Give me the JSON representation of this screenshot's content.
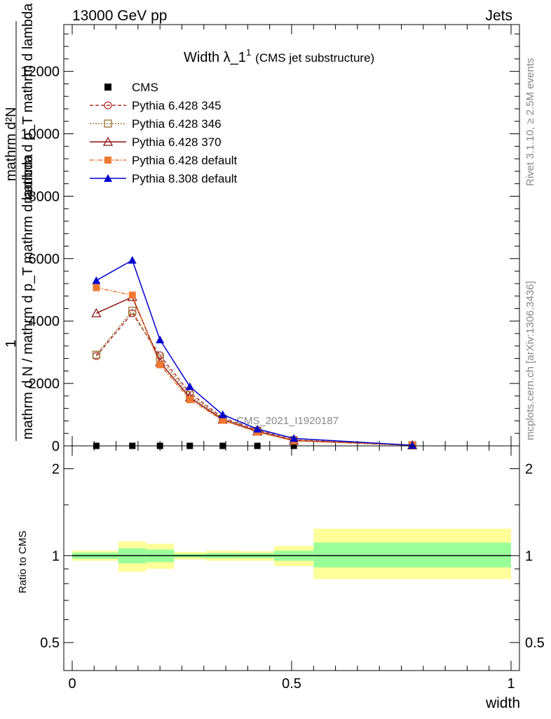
{
  "header": {
    "left": "13000 GeV pp",
    "right": "Jets"
  },
  "chart_data": {
    "type": "line",
    "title": "Width λ_1¹ (CMS jet substructure)",
    "title_main": "Width λ_1",
    "title_sup": "1",
    "title_sub": "(CMS jet substructure)",
    "xlabel": "width",
    "ylabel_numerator": "1",
    "ylabel_denominator": "mathrm d N / mathrm d p_T mathrm d lambda",
    "ylabel_top": "mathrm d²N",
    "ylabel_top2": "mathrm d p_T mathrm d lambda",
    "ratio_ylabel": "Ratio to CMS",
    "watermark": "CMS_2021_I1920187",
    "side_label_top": "Rivet 3.1.10, ≥ 2.5M events",
    "side_label_bottom": "mcplots.cern.ch [arXiv:1306.3436]",
    "xlim": [
      0,
      1
    ],
    "ylim": [
      0,
      13500
    ],
    "ratio_ylim": [
      0.4,
      2.4
    ],
    "main_yticks": [
      0,
      2000,
      4000,
      6000,
      8000,
      10000,
      12000
    ],
    "main_yticklabels": [
      "0",
      "2000",
      "4000",
      "6000",
      "8000",
      "10000",
      "12000"
    ],
    "ratio_yticks": [
      0.5,
      1,
      2
    ],
    "ratio_yticklabels": [
      "0.5",
      "1",
      "2"
    ],
    "xticks": [
      0,
      0.5,
      1
    ],
    "xticklabels": [
      "0",
      "0.5",
      "1"
    ],
    "legend_position": "top-left",
    "x": [
      0.055,
      0.137,
      0.2,
      0.268,
      0.343,
      0.422,
      0.505,
      0.775
    ],
    "series": [
      {
        "name": "CMS",
        "color": "#000000",
        "marker": "square",
        "dash": "",
        "values": [
          0,
          0,
          0,
          0,
          0,
          0,
          0,
          0
        ]
      },
      {
        "name": "Pythia 6.428 345",
        "color": "#b03030",
        "marker": "circle-open",
        "dash": "5,3",
        "values": [
          2880,
          4250,
          2900,
          1700,
          900,
          500,
          190,
          20
        ]
      },
      {
        "name": "Pythia 6.428 346",
        "color": "#9a7030",
        "marker": "square-open",
        "dash": "2,2",
        "values": [
          2920,
          4330,
          2800,
          1620,
          870,
          480,
          180,
          20
        ]
      },
      {
        "name": "Pythia 6.428 370",
        "color": "#8b1010",
        "marker": "triangle-open",
        "dash": "",
        "values": [
          4250,
          4770,
          2680,
          1550,
          840,
          460,
          170,
          20
        ]
      },
      {
        "name": "Pythia 6.428 default",
        "color": "#f07830",
        "marker": "square",
        "dash": "6,2,2,2",
        "values": [
          5070,
          4830,
          2600,
          1480,
          820,
          440,
          160,
          20
        ]
      },
      {
        "name": "Pythia 8.308 default",
        "color": "#0000cc",
        "marker": "triangle",
        "dash": "",
        "values": [
          5300,
          5950,
          3400,
          1900,
          1000,
          540,
          240,
          20
        ]
      }
    ],
    "ratio_bands": [
      {
        "x0": 0.0,
        "x1": 0.105,
        "yellow": [
          0.96,
          1.04
        ],
        "green": [
          0.975,
          1.025
        ]
      },
      {
        "x0": 0.105,
        "x1": 0.168,
        "yellow": [
          0.88,
          1.12
        ],
        "green": [
          0.94,
          1.06
        ]
      },
      {
        "x0": 0.168,
        "x1": 0.232,
        "yellow": [
          0.9,
          1.1
        ],
        "green": [
          0.95,
          1.05
        ]
      },
      {
        "x0": 0.232,
        "x1": 0.305,
        "yellow": [
          0.97,
          1.03
        ],
        "green": [
          0.985,
          1.015
        ]
      },
      {
        "x0": 0.305,
        "x1": 0.38,
        "yellow": [
          0.96,
          1.04
        ],
        "green": [
          0.98,
          1.02
        ]
      },
      {
        "x0": 0.38,
        "x1": 0.46,
        "yellow": [
          0.96,
          1.035
        ],
        "green": [
          0.98,
          1.02
        ]
      },
      {
        "x0": 0.46,
        "x1": 0.55,
        "yellow": [
          0.92,
          1.08
        ],
        "green": [
          0.96,
          1.04
        ]
      },
      {
        "x0": 0.55,
        "x1": 1.0,
        "yellow": [
          0.83,
          1.24
        ],
        "green": [
          0.91,
          1.11
        ]
      }
    ],
    "colors": {
      "yellow_band": "#ffff99",
      "green_band": "#99ff99"
    }
  }
}
